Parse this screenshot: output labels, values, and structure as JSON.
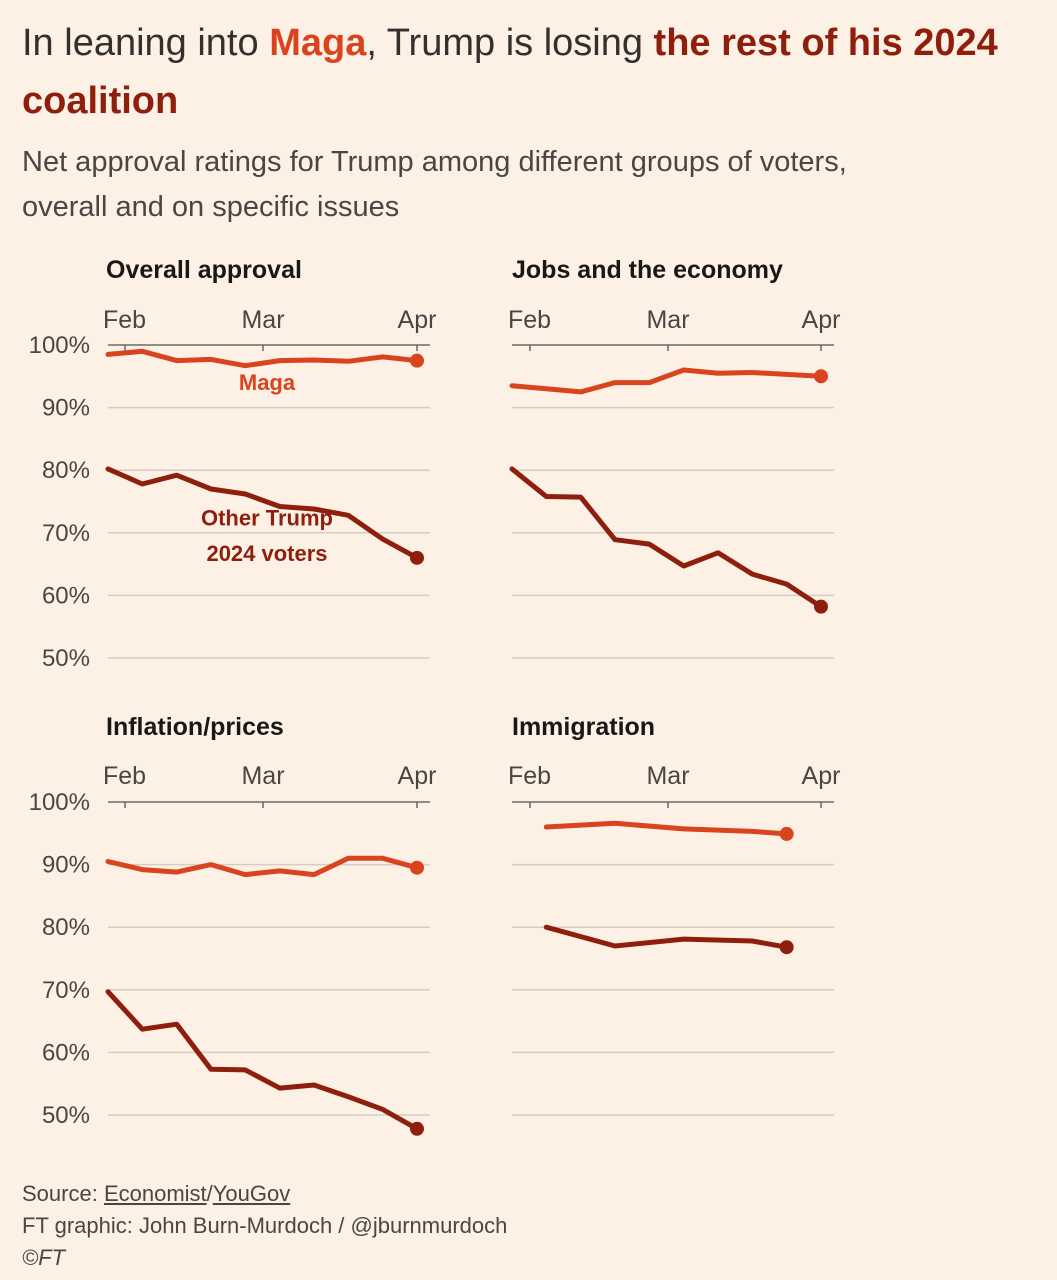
{
  "header": {
    "title_part1": "In leaning into ",
    "title_maga": "Maga",
    "title_part2": ", Trump is losing ",
    "title_part3": "the rest of his 2024 coalition",
    "subtitle": "Net approval ratings for Trump among different groups of voters, overall and on specific issues"
  },
  "footer": {
    "source_prefix": "Source: ",
    "source_name1": "Economist",
    "source_sep": "/",
    "source_name2": "YouGov",
    "credit": "FT graphic: John Burn-Murdoch / @jburnmurdoch",
    "copyright": "©FT"
  },
  "colors": {
    "maga": "#d9431e",
    "other": "#8f1f0d",
    "background": "#fdf1e6",
    "grid": "#d6ccc3"
  },
  "chart_data": [
    {
      "type": "line",
      "title": "Overall approval",
      "x_ticks": [
        "Feb",
        "Mar",
        "Apr"
      ],
      "y_ticks": [
        "100%",
        "90%",
        "80%",
        "70%",
        "60%",
        "50%"
      ],
      "ylim": [
        50,
        100
      ],
      "series": [
        {
          "name": "Maga",
          "x": [
            0,
            1,
            2,
            3,
            4,
            5,
            6,
            7,
            8,
            9
          ],
          "values": [
            98.5,
            99,
            97.5,
            97.7,
            96.7,
            97.5,
            97.6,
            97.4,
            98.1,
            97.5
          ]
        },
        {
          "name": "Other Trump 2024 voters",
          "x": [
            0,
            1,
            2,
            3,
            4,
            5,
            6,
            7,
            8,
            9
          ],
          "values": [
            80.2,
            77.8,
            79.2,
            77,
            76.2,
            74.2,
            73.8,
            72.8,
            69,
            66
          ]
        }
      ],
      "annotations": [
        {
          "text": "Maga"
        },
        {
          "text": "Other Trump"
        },
        {
          "text": "2024 voters"
        }
      ]
    },
    {
      "type": "line",
      "title": "Jobs and the economy",
      "x_ticks": [
        "Feb",
        "Mar",
        "Apr"
      ],
      "y_ticks": [],
      "ylim": [
        50,
        100
      ],
      "series": [
        {
          "x": [
            0,
            1,
            2,
            3,
            4,
            5,
            6,
            7,
            8,
            9
          ],
          "values": [
            93.5,
            93,
            92.5,
            94,
            94,
            96,
            95.5,
            95.6,
            95.3,
            95
          ]
        },
        {
          "x": [
            0,
            1,
            2,
            3,
            4,
            5,
            6,
            7,
            8,
            9
          ],
          "values": [
            80.2,
            75.8,
            75.7,
            68.9,
            68.2,
            64.7,
            66.8,
            63.4,
            61.8,
            58.2
          ]
        }
      ]
    },
    {
      "type": "line",
      "title": "Inflation/prices",
      "x_ticks": [
        "Feb",
        "Mar",
        "Apr"
      ],
      "y_ticks": [
        "100%",
        "90%",
        "80%",
        "70%",
        "60%",
        "50%"
      ],
      "ylim": [
        50,
        100
      ],
      "series": [
        {
          "x": [
            0,
            1,
            2,
            3,
            4,
            5,
            6,
            7,
            8,
            9
          ],
          "values": [
            90.5,
            89.2,
            88.8,
            90,
            88.4,
            89,
            88.4,
            91,
            91,
            89.5
          ]
        },
        {
          "x": [
            0,
            1,
            2,
            3,
            4,
            5,
            6,
            7,
            8,
            9
          ],
          "values": [
            69.7,
            63.7,
            64.5,
            57.3,
            57.2,
            54.3,
            54.8,
            52.9,
            50.9,
            47.8
          ]
        }
      ]
    },
    {
      "type": "line",
      "title": "Immigration",
      "x_ticks": [
        "Feb",
        "Mar",
        "Apr"
      ],
      "y_ticks": [],
      "ylim": [
        50,
        100
      ],
      "series": [
        {
          "x": [
            1,
            3,
            5,
            7,
            8
          ],
          "values": [
            96,
            96.6,
            95.7,
            95.3,
            94.9
          ]
        },
        {
          "x": [
            1,
            3,
            5,
            7,
            8
          ],
          "values": [
            80,
            77,
            78.1,
            77.8,
            76.8
          ]
        }
      ]
    }
  ]
}
